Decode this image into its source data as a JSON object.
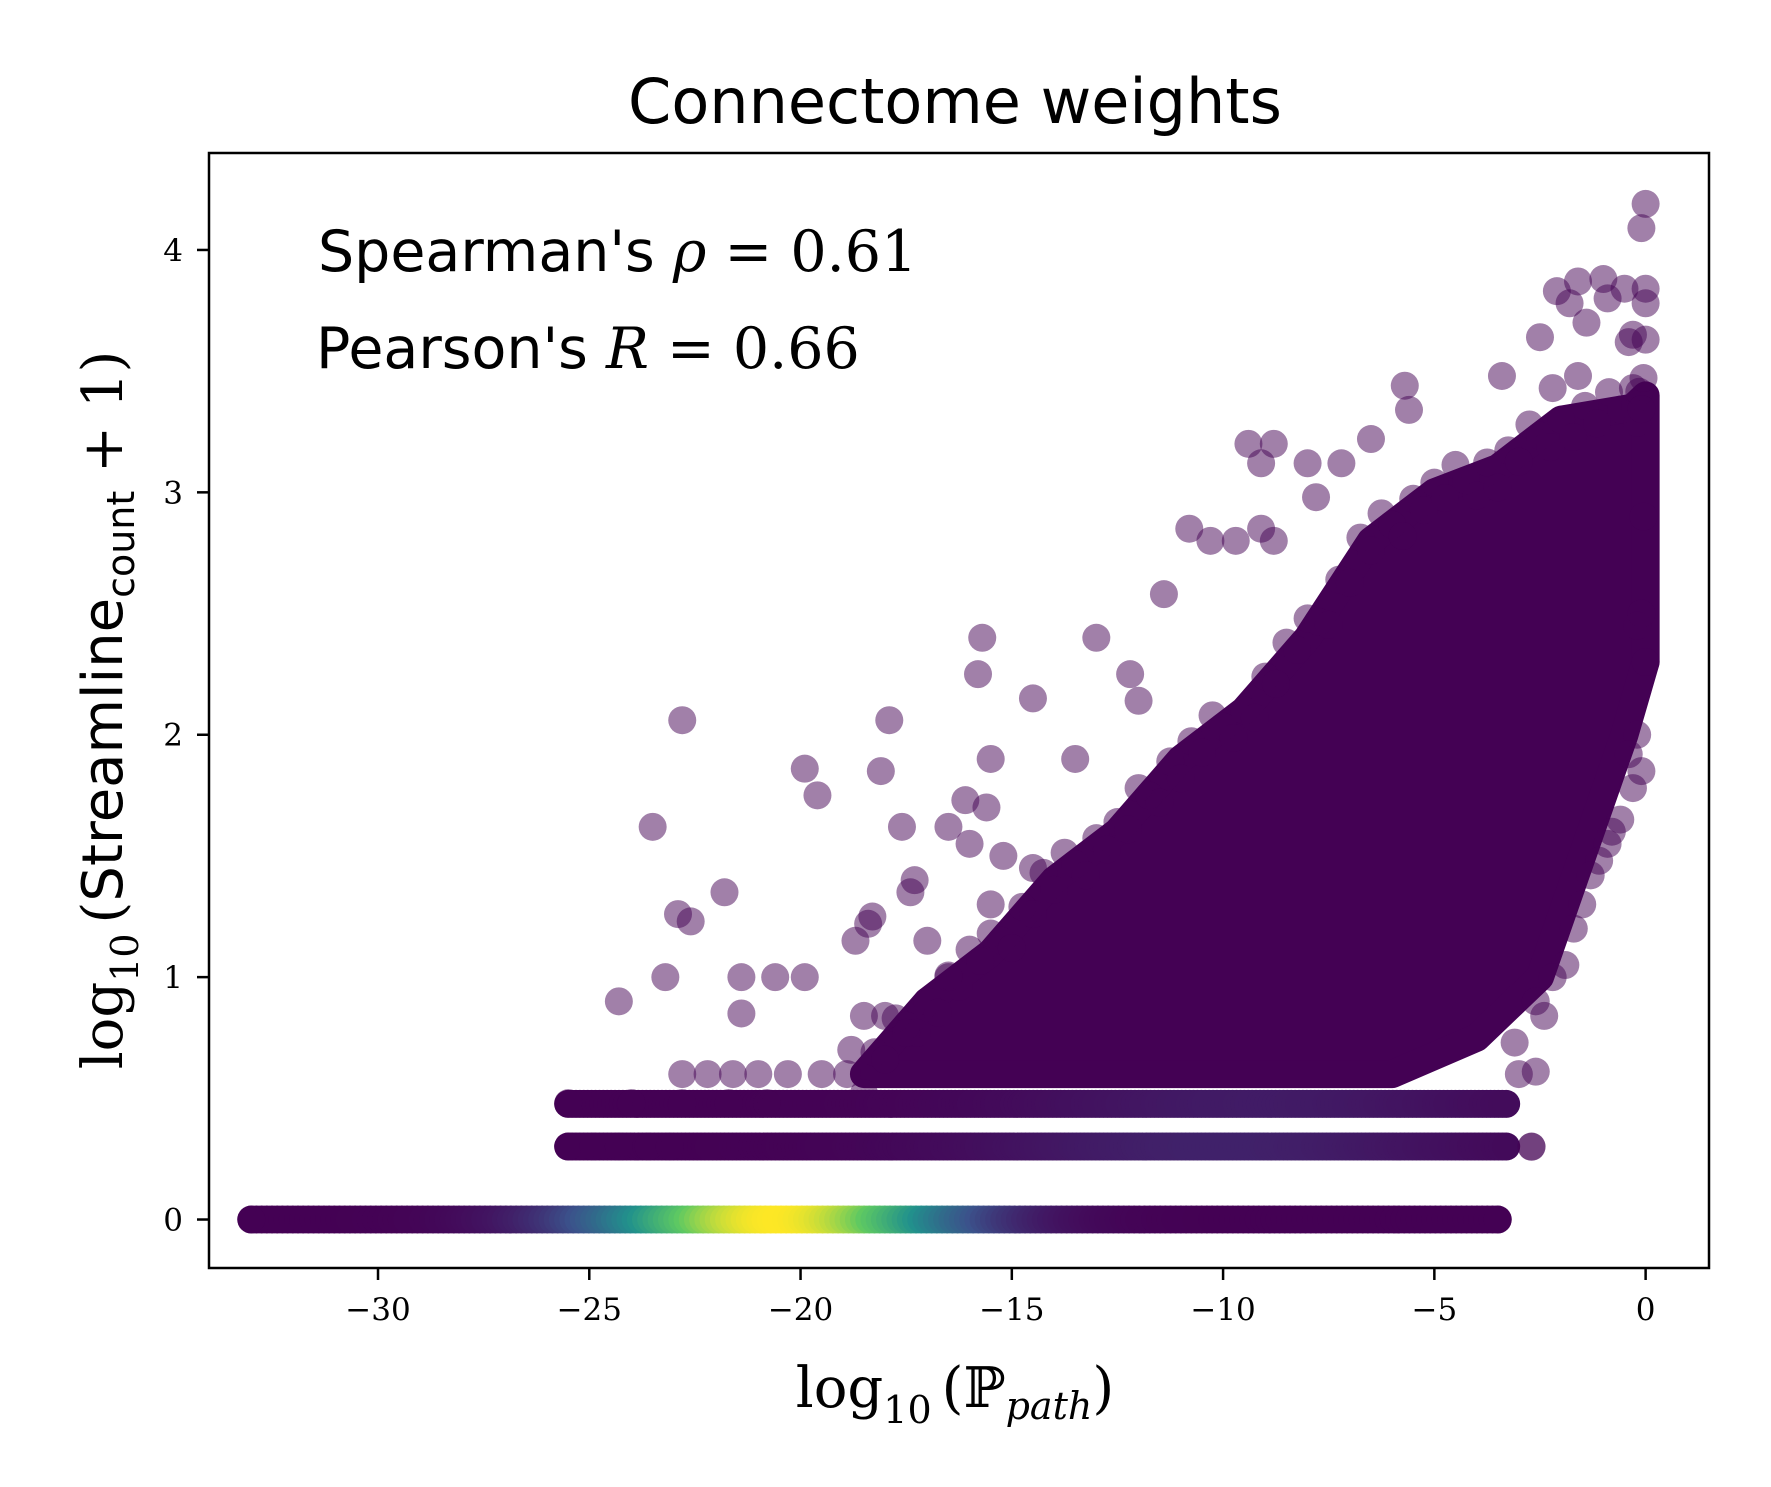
{
  "chart_data": {
    "type": "scatter",
    "title": "Connectome weights",
    "xlabel": {
      "prefix": "log",
      "sub": "10",
      "open": "(",
      "symbol": "ℙ",
      "symbol_sub": "path",
      "close": ")"
    },
    "ylabel": {
      "prefix": "log",
      "sub": "10",
      "open": "(",
      "name": "Streamline",
      "name_sub": "count",
      "tail": " + 1)"
    },
    "annotations": [
      {
        "label": "Spearman's ",
        "symbol": "ρ",
        "value": " = 0.61"
      },
      {
        "label": "Pearson's ",
        "symbol": "R",
        "value": " = 0.66"
      }
    ],
    "xlim": [
      -34,
      1.5
    ],
    "ylim": [
      -0.2,
      4.4
    ],
    "xticks": [
      -30,
      -25,
      -20,
      -15,
      -10,
      -5,
      0
    ],
    "xtick_labels": [
      "−30",
      "−25",
      "−20",
      "−15",
      "−10",
      "−5",
      "0"
    ],
    "yticks": [
      0,
      1,
      2,
      3,
      4
    ],
    "ytick_labels": [
      "0",
      "1",
      "2",
      "3",
      "4"
    ],
    "grid": false,
    "colormap": "viridis",
    "colors": {
      "low_density": "#440154",
      "point_alpha": 0.5,
      "colormap_stops": [
        "#440154",
        "#3b528b",
        "#21918c",
        "#5ec962",
        "#fde725"
      ]
    },
    "density_bands": [
      {
        "y": 0,
        "x_range": [
          -33.0,
          -3.5
        ],
        "peak_x": -20.5,
        "peak_width": 4.0,
        "peak_density": 1.0
      },
      {
        "y": 0.301,
        "x_range": [
          -25.5,
          -3.3
        ],
        "peak_x": -10.0,
        "peak_width": 6.0,
        "peak_density": 0.1
      },
      {
        "y": 0.477,
        "x_range": [
          -25.5,
          -3.3
        ],
        "peak_x": -9.0,
        "peak_width": 6.0,
        "peak_density": 0.08
      }
    ],
    "dense_region": {
      "description_points_y_upper_edge": [
        [
          -18.5,
          0.6
        ],
        [
          -17.0,
          0.9
        ],
        [
          -15.5,
          1.1
        ],
        [
          -14.0,
          1.4
        ],
        [
          -12.5,
          1.6
        ],
        [
          -11.0,
          1.9
        ],
        [
          -9.5,
          2.1
        ],
        [
          -8.0,
          2.4
        ],
        [
          -6.5,
          2.8
        ],
        [
          -5.0,
          3.0
        ],
        [
          -3.5,
          3.1
        ],
        [
          -2.0,
          3.3
        ],
        [
          -0.3,
          3.35
        ],
        [
          0.0,
          3.4
        ]
      ],
      "lower_edge": [
        [
          -18.5,
          0.6
        ],
        [
          -6.0,
          0.6
        ],
        [
          -4.0,
          0.75
        ],
        [
          -2.5,
          1.0
        ],
        [
          -1.5,
          1.5
        ],
        [
          -0.5,
          2.0
        ],
        [
          0.0,
          2.3
        ]
      ]
    },
    "outliers": [
      [
        -22.8,
        2.06
      ],
      [
        -17.9,
        2.06
      ],
      [
        -19.9,
        1.86
      ],
      [
        -18.1,
        1.85
      ],
      [
        -19.6,
        1.75
      ],
      [
        -23.5,
        1.62
      ],
      [
        -17.6,
        1.62
      ],
      [
        -21.8,
        1.35
      ],
      [
        -22.9,
        1.26
      ],
      [
        -22.6,
        1.23
      ],
      [
        -23.2,
        1.0
      ],
      [
        -24.3,
        0.9
      ],
      [
        -21.4,
        1.0
      ],
      [
        -20.6,
        1.0
      ],
      [
        -19.9,
        1.0
      ],
      [
        -21.4,
        0.85
      ],
      [
        -15.7,
        2.4
      ],
      [
        -15.8,
        2.25
      ],
      [
        -13.0,
        2.4
      ],
      [
        -11.4,
        2.58
      ],
      [
        -14.5,
        2.15
      ],
      [
        -12.2,
        2.25
      ],
      [
        -12.0,
        2.14
      ],
      [
        -13.5,
        1.9
      ],
      [
        -15.5,
        1.9
      ],
      [
        -16.1,
        1.73
      ],
      [
        -15.6,
        1.7
      ],
      [
        -16.5,
        1.62
      ],
      [
        -16.0,
        1.55
      ],
      [
        -15.2,
        1.5
      ],
      [
        -15.5,
        1.3
      ],
      [
        -14.5,
        1.45
      ],
      [
        -17.3,
        1.4
      ],
      [
        -17.4,
        1.35
      ],
      [
        -18.3,
        1.25
      ],
      [
        -18.4,
        1.22
      ],
      [
        -18.7,
        1.15
      ],
      [
        -17.0,
        1.15
      ],
      [
        -16.5,
        1.0
      ],
      [
        -10.8,
        2.85
      ],
      [
        -10.3,
        2.8
      ],
      [
        -9.7,
        2.8
      ],
      [
        -9.1,
        2.85
      ],
      [
        -8.8,
        2.8
      ],
      [
        -7.8,
        2.98
      ],
      [
        -7.2,
        3.12
      ],
      [
        -8.0,
        3.12
      ],
      [
        -9.4,
        3.2
      ],
      [
        -8.8,
        3.2
      ],
      [
        -6.5,
        3.22
      ],
      [
        -9.1,
        3.12
      ],
      [
        -5.6,
        3.34
      ],
      [
        -5.7,
        3.44
      ],
      [
        -3.4,
        3.48
      ],
      [
        -2.5,
        3.64
      ],
      [
        -2.1,
        3.83
      ],
      [
        -1.6,
        3.87
      ],
      [
        -1.0,
        3.88
      ],
      [
        -0.5,
        3.84
      ],
      [
        -1.8,
        3.78
      ],
      [
        -1.4,
        3.7
      ],
      [
        -0.9,
        3.8
      ],
      [
        -0.3,
        3.65
      ],
      [
        0.0,
        3.78
      ],
      [
        0.0,
        3.84
      ],
      [
        -0.1,
        4.09
      ],
      [
        0.0,
        4.19
      ],
      [
        0.0,
        3.63
      ],
      [
        -0.4,
        3.62
      ],
      [
        -1.6,
        3.48
      ],
      [
        -2.2,
        3.43
      ],
      [
        -0.1,
        1.85
      ],
      [
        -0.2,
        2.0
      ],
      [
        -0.3,
        1.78
      ],
      [
        -0.4,
        1.92
      ],
      [
        -0.6,
        1.65
      ],
      [
        -0.8,
        1.6
      ],
      [
        -0.9,
        1.55
      ],
      [
        -1.1,
        1.48
      ],
      [
        -1.3,
        1.42
      ],
      [
        -1.5,
        1.3
      ],
      [
        -1.7,
        1.2
      ],
      [
        -1.9,
        1.05
      ],
      [
        -2.2,
        1.0
      ],
      [
        -2.6,
        0.9
      ],
      [
        -2.4,
        0.84
      ],
      [
        -3.1,
        0.73
      ],
      [
        -2.6,
        0.61
      ],
      [
        -3.0,
        0.6
      ],
      [
        -2.7,
        0.3
      ],
      [
        0.0,
        2.3
      ],
      [
        -0.1,
        2.5
      ],
      [
        -0.2,
        2.45
      ],
      [
        -0.05,
        2.9
      ],
      [
        -25.5,
        0.48
      ],
      [
        -24.0,
        0.48
      ],
      [
        -22.8,
        0.48
      ],
      [
        -21.7,
        0.48
      ],
      [
        -20.8,
        0.48
      ],
      [
        -22.8,
        0.6
      ],
      [
        -22.2,
        0.6
      ],
      [
        -21.6,
        0.6
      ],
      [
        -21.0,
        0.6
      ],
      [
        -20.3,
        0.6
      ],
      [
        -19.5,
        0.6
      ],
      [
        -18.9,
        0.6
      ],
      [
        -18.8,
        0.7
      ],
      [
        -18.5,
        0.84
      ],
      [
        -18.0,
        0.84
      ],
      [
        -17.5,
        0.77
      ]
    ],
    "band_outliers": [
      [
        -33.0,
        0
      ],
      [
        -3.5,
        0
      ],
      [
        -25.5,
        0.301
      ],
      [
        -24.9,
        0.301
      ],
      [
        -24.3,
        0.301
      ],
      [
        -23.6,
        0.301
      ],
      [
        -23.1,
        0.301
      ],
      [
        -2.7,
        0.301
      ]
    ]
  }
}
